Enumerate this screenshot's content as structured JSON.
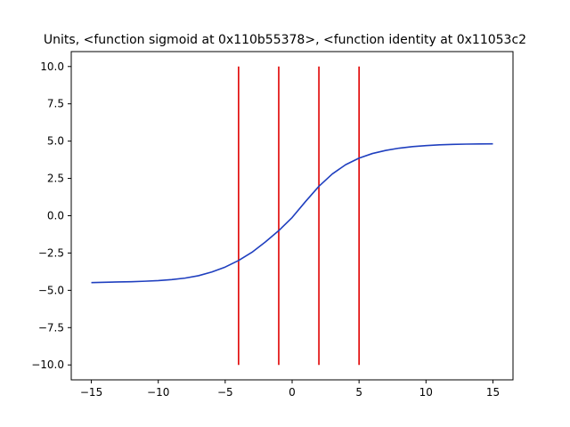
{
  "chart_data": {
    "type": "line",
    "title": "Units, <function sigmoid at 0x110b55378>, <function identity at 0x11053c2",
    "xlabel": "",
    "ylabel": "",
    "xlim": [
      -16.5,
      16.5
    ],
    "ylim": [
      -11,
      11
    ],
    "grid": false,
    "x_ticks": [
      -15,
      -10,
      -5,
      0,
      5,
      10,
      15
    ],
    "x_tick_labels": [
      "−15",
      "−10",
      "−5",
      "0",
      "5",
      "10",
      "15"
    ],
    "y_ticks": [
      -10,
      -7.5,
      -5,
      -2.5,
      0,
      2.5,
      5,
      7.5,
      10
    ],
    "y_tick_labels": [
      "−10.0",
      "−7.5",
      "−5.0",
      "−2.5",
      "0.0",
      "2.5",
      "5.0",
      "7.5",
      "10.0"
    ],
    "curve": {
      "color": "#1f3fbf",
      "x": [
        -15,
        -14,
        -13,
        -12,
        -11,
        -10,
        -9,
        -8,
        -7,
        -6,
        -5,
        -4,
        -3,
        -2,
        -1,
        0,
        1,
        2,
        3,
        4,
        5,
        6,
        7,
        8,
        9,
        10,
        11,
        12,
        13,
        14,
        15
      ],
      "y": [
        -4.48,
        -4.46,
        -4.44,
        -4.42,
        -4.39,
        -4.35,
        -4.28,
        -4.18,
        -4.02,
        -3.77,
        -3.44,
        -3.0,
        -2.45,
        -1.76,
        -1.0,
        -0.12,
        0.95,
        1.97,
        2.8,
        3.42,
        3.86,
        4.17,
        4.38,
        4.53,
        4.63,
        4.7,
        4.75,
        4.78,
        4.8,
        4.81,
        4.82
      ]
    },
    "vlines": {
      "color": "#e00000",
      "x": [
        -4,
        -1,
        2,
        5
      ],
      "ymin": -10,
      "ymax": 10
    }
  }
}
